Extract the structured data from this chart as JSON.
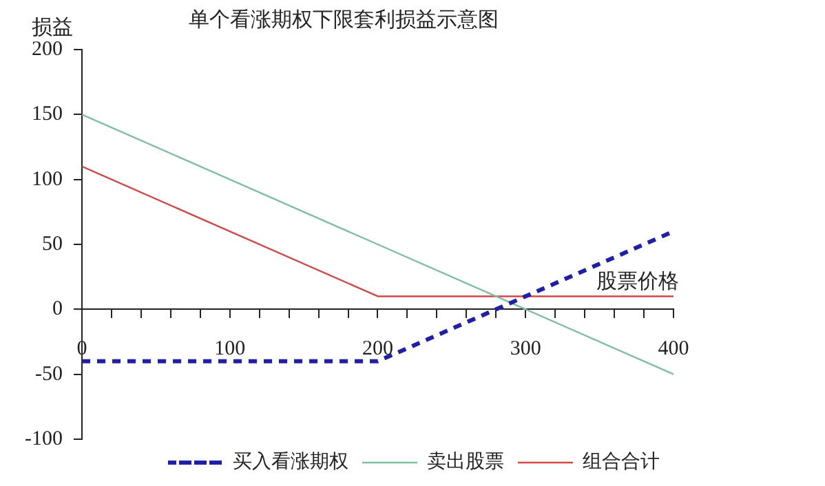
{
  "chart_data": {
    "type": "line",
    "title": "单个看涨期权下限套利损益示意图",
    "xlabel": "股票价格",
    "ylabel": "损益",
    "x": [
      0,
      200,
      400
    ],
    "series": [
      {
        "name": "买入看涨期权",
        "color": "#1f1fa8",
        "values": [
          -40,
          -40,
          60
        ],
        "line_style": "dashed"
      },
      {
        "name": "卖出股票",
        "color": "#7fbfa0",
        "values": [
          150,
          50,
          -50
        ],
        "line_style": "solid"
      },
      {
        "name": "组合合计",
        "color": "#d04848",
        "values": [
          110,
          10,
          10
        ],
        "line_style": "solid"
      }
    ],
    "xlim": [
      0,
      400
    ],
    "ylim": [
      -100,
      200
    ],
    "xticks": [
      0,
      {
        "value": 20,
        "label": null
      },
      {
        "value": 40,
        "label": null
      },
      {
        "value": 60,
        "label": null
      },
      {
        "value": 80,
        "label": null
      },
      100,
      {
        "value": 120,
        "label": null
      },
      {
        "value": 140,
        "label": null
      },
      {
        "value": 160,
        "label": null
      },
      {
        "value": 180,
        "label": null
      },
      200,
      {
        "value": 220,
        "label": null
      },
      {
        "value": 240,
        "label": null
      },
      {
        "value": 260,
        "label": null
      },
      {
        "value": 280,
        "label": null
      },
      300,
      {
        "value": 320,
        "label": null
      },
      {
        "value": 340,
        "label": null
      },
      {
        "value": 360,
        "label": null
      },
      {
        "value": 380,
        "label": null
      },
      400
    ],
    "yticks": [
      -100,
      -50,
      0,
      50,
      100,
      150,
      200
    ],
    "grid": false,
    "legend": "bottom right",
    "marker": "none"
  }
}
